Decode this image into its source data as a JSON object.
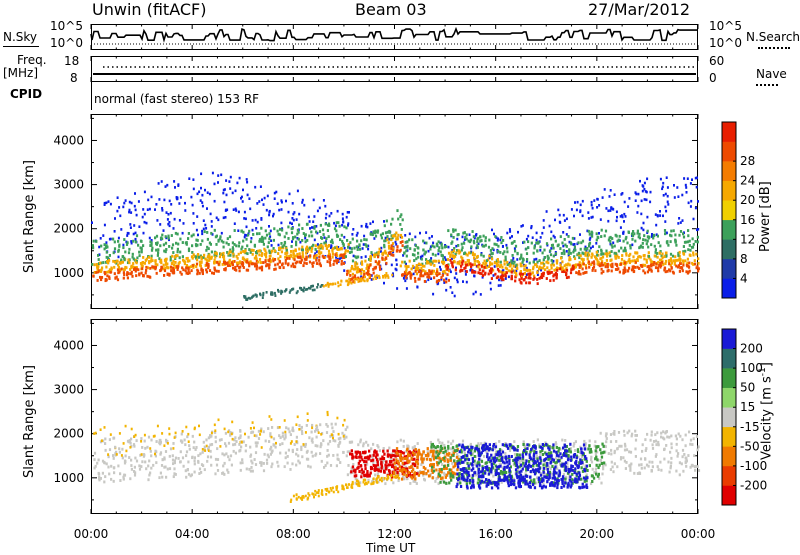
{
  "header": {
    "station": "Unwin (fitACF)",
    "beam": "Beam 03",
    "date": "27/Mar/2012"
  },
  "top_panels": {
    "nsky_label": "N.Sky",
    "nsky_ticks": [
      "10^5",
      "10^0"
    ],
    "nsearch_label": "N.Search",
    "nsearch_ticks": [
      "10^5",
      "10^0"
    ],
    "freq_label": "Freq.",
    "freq_unit": "[MHz]",
    "freq_ticks": [
      "18",
      "8"
    ],
    "nave_label": "Nave",
    "nave_ticks": [
      "60",
      "0"
    ],
    "cpid_label": "CPID",
    "cpid_text": "normal (fast stereo) 153 RF"
  },
  "chart_data": [
    {
      "type": "heatmap",
      "ylabel": "Slant Range [km]",
      "yticks": [
        1000,
        2000,
        3000,
        4000
      ],
      "ylim": [
        180,
        4600
      ],
      "xlim_hours": [
        0,
        24
      ],
      "colorbar": {
        "label": "Power [dB]",
        "ticks": [
          "4",
          "8",
          "12",
          "16",
          "20",
          "24",
          "28"
        ],
        "colors": [
          "#0a1ee8",
          "#1f3aa8",
          "#2e6e64",
          "#3ca05a",
          "#f0d000",
          "#f6a800",
          "#f47c00",
          "#ee4a00",
          "#e81e00"
        ]
      }
    },
    {
      "type": "heatmap",
      "ylabel": "Slant Range [km]",
      "yticks": [
        1000,
        2000,
        3000,
        4000
      ],
      "ylim": [
        180,
        4600
      ],
      "xlim_hours": [
        0,
        24
      ],
      "colorbar": {
        "label": "Velocity [m s^-1]",
        "ticks": [
          "200",
          "100",
          "50",
          "15",
          "-15",
          "-50",
          "-100",
          "-200"
        ],
        "colors": [
          "#1a1ad6",
          "#2d6d6a",
          "#3c9a3c",
          "#8ed66a",
          "#c8c8c4",
          "#f2b400",
          "#f07a00",
          "#ea3c00",
          "#e00000"
        ]
      }
    }
  ],
  "x_axis": {
    "ticks": [
      "00:00",
      "04:00",
      "08:00",
      "12:00",
      "16:00",
      "20:00",
      "00:00"
    ],
    "label": "Time UT"
  }
}
